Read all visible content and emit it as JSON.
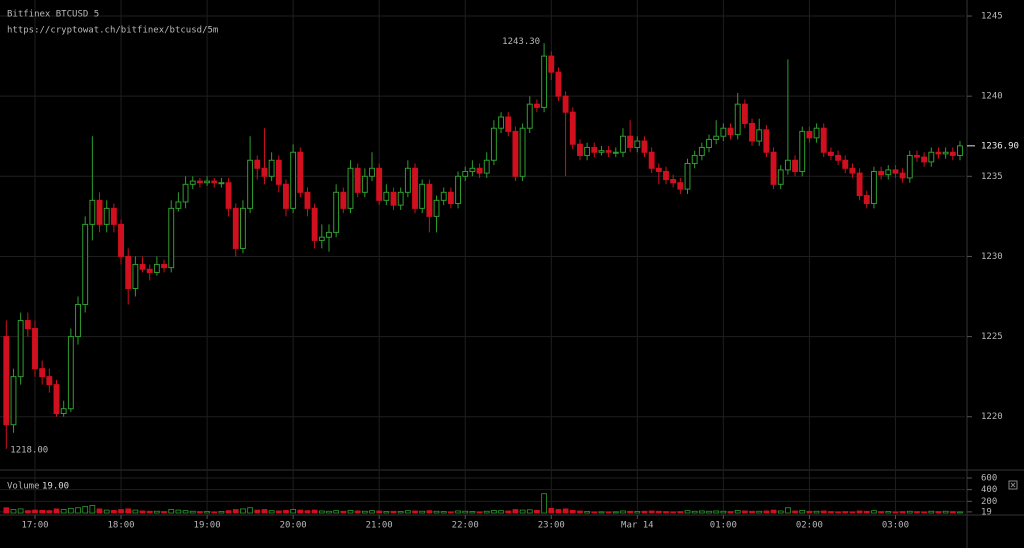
{
  "chart_data": {
    "type": "candlestick",
    "title": "Bitfinex BTCUSD 5",
    "subtitle": "https://cryptowat.ch/bitfinex/btcusd/5m",
    "up_color": "#2e9e2e",
    "down_color": "#d0101e",
    "grid": true,
    "ylim": [
      1216.8,
      1246
    ],
    "yticks": [
      1220,
      1225,
      1230,
      1235,
      1240,
      1245
    ],
    "xlim": [
      -0.88,
      133.7
    ],
    "xticks": [
      {
        "value": 4,
        "label": "17:00"
      },
      {
        "value": 16,
        "label": "18:00"
      },
      {
        "value": 28,
        "label": "19:00"
      },
      {
        "value": 40,
        "label": "20:00"
      },
      {
        "value": 52,
        "label": "21:00"
      },
      {
        "value": 64,
        "label": "22:00"
      },
      {
        "value": 76,
        "label": "23:00"
      },
      {
        "value": 88,
        "label": "Mar 14"
      },
      {
        "value": 100,
        "label": "01:00"
      },
      {
        "value": 112,
        "label": "02:00"
      },
      {
        "value": 124,
        "label": "03:00"
      }
    ],
    "high_label": {
      "value": 1243.3,
      "label": "1243.30",
      "index": 75
    },
    "low_label": {
      "value": 1218,
      "label": "1218.00",
      "index": 0
    },
    "last_price": {
      "value": 1236.9,
      "label": "1236.90"
    },
    "volume_name": "Volume",
    "volume_last": {
      "value": 19,
      "label": "19.00"
    },
    "volume_ylim": [
      0,
      620
    ],
    "volume_yticks": [
      19,
      200,
      400,
      600
    ],
    "ohlc": [
      [
        1225,
        1226,
        1218,
        1219.5
      ],
      [
        1219.5,
        1223,
        1219,
        1222.5
      ],
      [
        1222.5,
        1226.5,
        1222,
        1226
      ],
      [
        1226,
        1226.5,
        1225,
        1225.5
      ],
      [
        1225.5,
        1226,
        1222.5,
        1223
      ],
      [
        1223,
        1223.5,
        1222,
        1222.5
      ],
      [
        1222.5,
        1223,
        1221.5,
        1222
      ],
      [
        1222,
        1222.3,
        1220,
        1220.2
      ],
      [
        1220.2,
        1221,
        1220,
        1220.5
      ],
      [
        1220.5,
        1225.5,
        1220.3,
        1225
      ],
      [
        1225,
        1227.5,
        1224.5,
        1227
      ],
      [
        1227,
        1232.5,
        1226.5,
        1232
      ],
      [
        1232,
        1237.5,
        1231,
        1233.5
      ],
      [
        1233.5,
        1234,
        1231.5,
        1232
      ],
      [
        1232,
        1233.5,
        1231.5,
        1233
      ],
      [
        1233,
        1233.3,
        1231.5,
        1232
      ],
      [
        1232,
        1232.3,
        1229.5,
        1230
      ],
      [
        1230,
        1230.5,
        1227,
        1228
      ],
      [
        1228,
        1230,
        1227.5,
        1229.5
      ],
      [
        1229.5,
        1230,
        1229,
        1229.2
      ],
      [
        1229.2,
        1229.5,
        1228.5,
        1229
      ],
      [
        1229,
        1230,
        1228.8,
        1229.5
      ],
      [
        1229.5,
        1229.8,
        1229,
        1229.3
      ],
      [
        1229.3,
        1233.5,
        1229,
        1233
      ],
      [
        1233,
        1234,
        1232.8,
        1233.4
      ],
      [
        1233.4,
        1235,
        1233,
        1234.5
      ],
      [
        1234.5,
        1235,
        1234.2,
        1234.7
      ],
      [
        1234.7,
        1234.9,
        1234.3,
        1234.6
      ],
      [
        1234.6,
        1235,
        1234.4,
        1234.7
      ],
      [
        1234.7,
        1234.9,
        1234.3,
        1234.6
      ],
      [
        1234.6,
        1234.9,
        1234.3,
        1234.6
      ],
      [
        1234.6,
        1234.9,
        1232.5,
        1233
      ],
      [
        1233,
        1233.3,
        1230,
        1230.5
      ],
      [
        1230.5,
        1233.5,
        1230.2,
        1233
      ],
      [
        1233,
        1237.5,
        1232.7,
        1236
      ],
      [
        1236,
        1236.3,
        1234.8,
        1235.5
      ],
      [
        1235.5,
        1238,
        1234.5,
        1235
      ],
      [
        1235,
        1236.5,
        1234.7,
        1236
      ],
      [
        1236,
        1236.3,
        1234,
        1234.5
      ],
      [
        1234.5,
        1234.8,
        1232.5,
        1233
      ],
      [
        1233,
        1237,
        1232.7,
        1236.5
      ],
      [
        1236.5,
        1236.8,
        1233.7,
        1234
      ],
      [
        1234,
        1234.3,
        1232.5,
        1233
      ],
      [
        1233,
        1233.3,
        1230.5,
        1231
      ],
      [
        1231,
        1232,
        1230.5,
        1231.2
      ],
      [
        1231.2,
        1232,
        1230.3,
        1231.5
      ],
      [
        1231.5,
        1234.5,
        1231.2,
        1234
      ],
      [
        1234,
        1234.3,
        1232.7,
        1233
      ],
      [
        1233,
        1236,
        1232.7,
        1235.5
      ],
      [
        1235.5,
        1235.8,
        1233.7,
        1234
      ],
      [
        1234,
        1235.5,
        1233.7,
        1235
      ],
      [
        1235,
        1236.5,
        1234.7,
        1235.5
      ],
      [
        1235.5,
        1235.8,
        1233.2,
        1233.5
      ],
      [
        1233.5,
        1234.5,
        1233.2,
        1234
      ],
      [
        1234,
        1234.3,
        1232.9,
        1233.2
      ],
      [
        1233.2,
        1234.3,
        1232.9,
        1234
      ],
      [
        1234,
        1236,
        1233.7,
        1235.5
      ],
      [
        1235.5,
        1235.8,
        1232.7,
        1233
      ],
      [
        1233,
        1234.8,
        1232.7,
        1234.5
      ],
      [
        1234.5,
        1234.8,
        1231.5,
        1232.5
      ],
      [
        1232.5,
        1233.8,
        1231.5,
        1233.5
      ],
      [
        1233.5,
        1234.3,
        1233.2,
        1234
      ],
      [
        1234,
        1234.3,
        1233,
        1233.3
      ],
      [
        1233.3,
        1235.3,
        1233,
        1235
      ],
      [
        1235,
        1235.6,
        1234.7,
        1235.3
      ],
      [
        1235.3,
        1236,
        1235,
        1235.5
      ],
      [
        1235.5,
        1235.8,
        1234.9,
        1235.2
      ],
      [
        1235.2,
        1236.5,
        1234.9,
        1236
      ],
      [
        1236,
        1238.5,
        1235.7,
        1238
      ],
      [
        1238,
        1239,
        1237.7,
        1238.7
      ],
      [
        1238.7,
        1239,
        1237.5,
        1237.8
      ],
      [
        1237.8,
        1238.1,
        1234.7,
        1235
      ],
      [
        1235,
        1238.3,
        1234.7,
        1238
      ],
      [
        1238,
        1240,
        1237.7,
        1239.5
      ],
      [
        1239.5,
        1239.8,
        1239,
        1239.3
      ],
      [
        1239.3,
        1243.3,
        1239,
        1242.5
      ],
      [
        1242.5,
        1242.8,
        1241,
        1241.5
      ],
      [
        1241.5,
        1241.8,
        1239.7,
        1240
      ],
      [
        1240,
        1240.3,
        1235,
        1239
      ],
      [
        1239,
        1239.3,
        1236.7,
        1237
      ],
      [
        1237,
        1237.3,
        1236,
        1236.3
      ],
      [
        1236.3,
        1237.1,
        1236,
        1236.8
      ],
      [
        1236.8,
        1237.1,
        1236.2,
        1236.5
      ],
      [
        1236.5,
        1236.9,
        1236.3,
        1236.6
      ],
      [
        1236.6,
        1236.9,
        1236.2,
        1236.5
      ],
      [
        1236.5,
        1236.8,
        1236.2,
        1236.5
      ],
      [
        1236.5,
        1238,
        1236.2,
        1237.5
      ],
      [
        1237.5,
        1238.5,
        1236.5,
        1236.8
      ],
      [
        1236.8,
        1237.5,
        1236.5,
        1237.2
      ],
      [
        1237.2,
        1237.5,
        1236.2,
        1236.5
      ],
      [
        1236.5,
        1236.8,
        1235.2,
        1235.5
      ],
      [
        1235.5,
        1235.8,
        1234.5,
        1235.3
      ],
      [
        1235.3,
        1235.6,
        1234.5,
        1234.8
      ],
      [
        1234.8,
        1235.1,
        1234.3,
        1234.6
      ],
      [
        1234.6,
        1234.9,
        1233.9,
        1234.2
      ],
      [
        1234.2,
        1236.1,
        1233.9,
        1235.8
      ],
      [
        1235.8,
        1236.6,
        1235.5,
        1236.3
      ],
      [
        1236.3,
        1237.1,
        1236,
        1236.8
      ],
      [
        1236.8,
        1237.6,
        1236.5,
        1237.3
      ],
      [
        1237.3,
        1238.5,
        1237,
        1237.5
      ],
      [
        1237.5,
        1238.3,
        1237.2,
        1238
      ],
      [
        1238,
        1238.3,
        1237.3,
        1237.6
      ],
      [
        1237.6,
        1240.2,
        1237.3,
        1239.5
      ],
      [
        1239.5,
        1239.8,
        1238,
        1238.3
      ],
      [
        1238.3,
        1238.6,
        1236.9,
        1237.2
      ],
      [
        1237.2,
        1238.6,
        1236.9,
        1237.9
      ],
      [
        1237.9,
        1238.2,
        1236.2,
        1236.5
      ],
      [
        1236.5,
        1236.8,
        1234.2,
        1234.5
      ],
      [
        1234.5,
        1235.7,
        1234.2,
        1235.4
      ],
      [
        1235.4,
        1242.3,
        1235.1,
        1236
      ],
      [
        1236,
        1236.3,
        1235,
        1235.3
      ],
      [
        1235.3,
        1238.1,
        1235,
        1237.8
      ],
      [
        1237.8,
        1238.1,
        1237.1,
        1237.4
      ],
      [
        1237.4,
        1238.3,
        1237.1,
        1238
      ],
      [
        1238,
        1238.3,
        1236.2,
        1236.5
      ],
      [
        1236.5,
        1236.8,
        1236,
        1236.3
      ],
      [
        1236.3,
        1236.6,
        1235.7,
        1236
      ],
      [
        1236,
        1236.3,
        1235.2,
        1235.5
      ],
      [
        1235.5,
        1235.8,
        1234.9,
        1235.2
      ],
      [
        1235.2,
        1235.5,
        1233.5,
        1233.8
      ],
      [
        1233.8,
        1234.1,
        1233,
        1233.3
      ],
      [
        1233.3,
        1235.6,
        1233,
        1235.3
      ],
      [
        1235.3,
        1235.6,
        1234.8,
        1235.1
      ],
      [
        1235.1,
        1235.7,
        1234.8,
        1235.4
      ],
      [
        1235.4,
        1235.7,
        1234.9,
        1235.2
      ],
      [
        1235.2,
        1235.5,
        1234.6,
        1234.9
      ],
      [
        1234.9,
        1236.6,
        1234.6,
        1236.3
      ],
      [
        1236.3,
        1236.6,
        1235.9,
        1236.2
      ],
      [
        1236.2,
        1236.5,
        1235.6,
        1235.9
      ],
      [
        1235.9,
        1236.8,
        1235.6,
        1236.5
      ],
      [
        1236.5,
        1236.8,
        1236.1,
        1236.4
      ],
      [
        1236.4,
        1236.8,
        1236.1,
        1236.5
      ],
      [
        1236.5,
        1236.8,
        1236,
        1236.3
      ],
      [
        1236.3,
        1237.2,
        1236,
        1236.9
      ]
    ],
    "volume": [
      90,
      60,
      70,
      40,
      50,
      45,
      40,
      70,
      60,
      80,
      90,
      110,
      130,
      70,
      50,
      45,
      60,
      70,
      50,
      35,
      30,
      30,
      25,
      60,
      50,
      40,
      30,
      25,
      25,
      20,
      25,
      40,
      60,
      70,
      90,
      50,
      60,
      40,
      35,
      45,
      60,
      50,
      40,
      50,
      35,
      30,
      40,
      30,
      45,
      35,
      30,
      40,
      35,
      25,
      30,
      25,
      40,
      35,
      30,
      40,
      30,
      25,
      20,
      35,
      30,
      25,
      20,
      30,
      45,
      40,
      35,
      60,
      50,
      55,
      45,
      330,
      80,
      60,
      70,
      45,
      35,
      25,
      20,
      20,
      20,
      20,
      35,
      30,
      25,
      30,
      35,
      30,
      25,
      20,
      25,
      40,
      30,
      35,
      30,
      35,
      30,
      25,
      45,
      35,
      30,
      30,
      35,
      50,
      35,
      90,
      35,
      45,
      30,
      30,
      35,
      25,
      20,
      25,
      20,
      35,
      30,
      40,
      25,
      25,
      20,
      25,
      30,
      25,
      20,
      30,
      25,
      30,
      25,
      19
    ]
  }
}
